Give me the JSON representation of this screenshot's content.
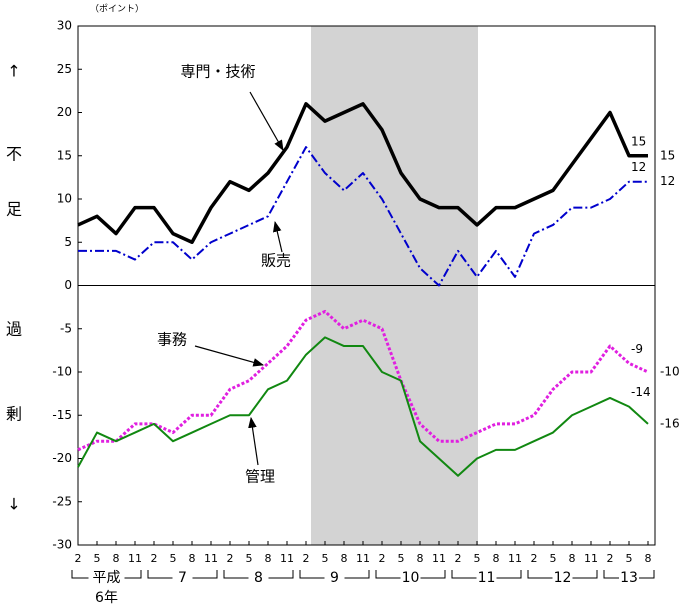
{
  "chart_data": {
    "type": "line",
    "unit_label": "（ポイント）",
    "y_side_labels": [
      "↑",
      "不",
      "足",
      "過",
      "剰",
      "↓"
    ],
    "categories": [
      "2",
      "5",
      "8",
      "11",
      "2",
      "5",
      "8",
      "11",
      "2",
      "5",
      "8",
      "11",
      "2",
      "5",
      "8",
      "11",
      "2",
      "5",
      "8",
      "11",
      "2",
      "5",
      "8",
      "11",
      "2",
      "5",
      "8",
      "11",
      "2",
      "5",
      "8"
    ],
    "era": "平成",
    "years": [
      "6年",
      "7",
      "8",
      "9",
      "10",
      "11",
      "12",
      "13"
    ],
    "ylim": [
      -30,
      30
    ],
    "yticks": [
      30,
      25,
      20,
      15,
      10,
      5,
      0,
      -5,
      -10,
      -15,
      -20,
      -25,
      -30
    ],
    "labeled_points": [
      29,
      30
    ],
    "series": [
      {
        "name": "専門・技術",
        "color": "#000000",
        "style": "solid",
        "width": 3.5,
        "values": [
          7,
          8,
          6,
          9,
          9,
          6,
          5,
          9,
          12,
          11,
          13,
          16,
          21,
          19,
          20,
          21,
          18,
          13,
          10,
          9,
          9,
          7,
          9,
          9,
          10,
          11,
          14,
          17,
          20,
          15,
          15
        ]
      },
      {
        "name": "販売",
        "color": "#0000cc",
        "style": "dashdot",
        "width": 2,
        "values": [
          4,
          4,
          4,
          3,
          5,
          5,
          3,
          5,
          6,
          7,
          8,
          12,
          16,
          13,
          11,
          13,
          10,
          6,
          2,
          0,
          4,
          1,
          4,
          1,
          6,
          7,
          9,
          9,
          10,
          12,
          12
        ]
      },
      {
        "name": "事務",
        "color": "#e020e0",
        "style": "dotted",
        "width": 3,
        "values": [
          -19,
          -18,
          -18,
          -16,
          -16,
          -17,
          -15,
          -15,
          -12,
          -11,
          -9,
          -7,
          -4,
          -3,
          -5,
          -4,
          -5,
          -11,
          -16,
          -18,
          -18,
          -17,
          -16,
          -16,
          -15,
          -12,
          -10,
          -10,
          -7,
          -9,
          -10
        ]
      },
      {
        "name": "管理",
        "color": "#118811",
        "style": "solid",
        "width": 2,
        "values": [
          -21,
          -17,
          -18,
          -17,
          -16,
          -18,
          -17,
          -16,
          -15,
          -15,
          -12,
          -11,
          -8,
          -6,
          -7,
          -7,
          -10,
          -11,
          -18,
          -20,
          -22,
          -20,
          -19,
          -19,
          -18,
          -17,
          -15,
          -14,
          -13,
          -14,
          -16
        ]
      }
    ]
  }
}
